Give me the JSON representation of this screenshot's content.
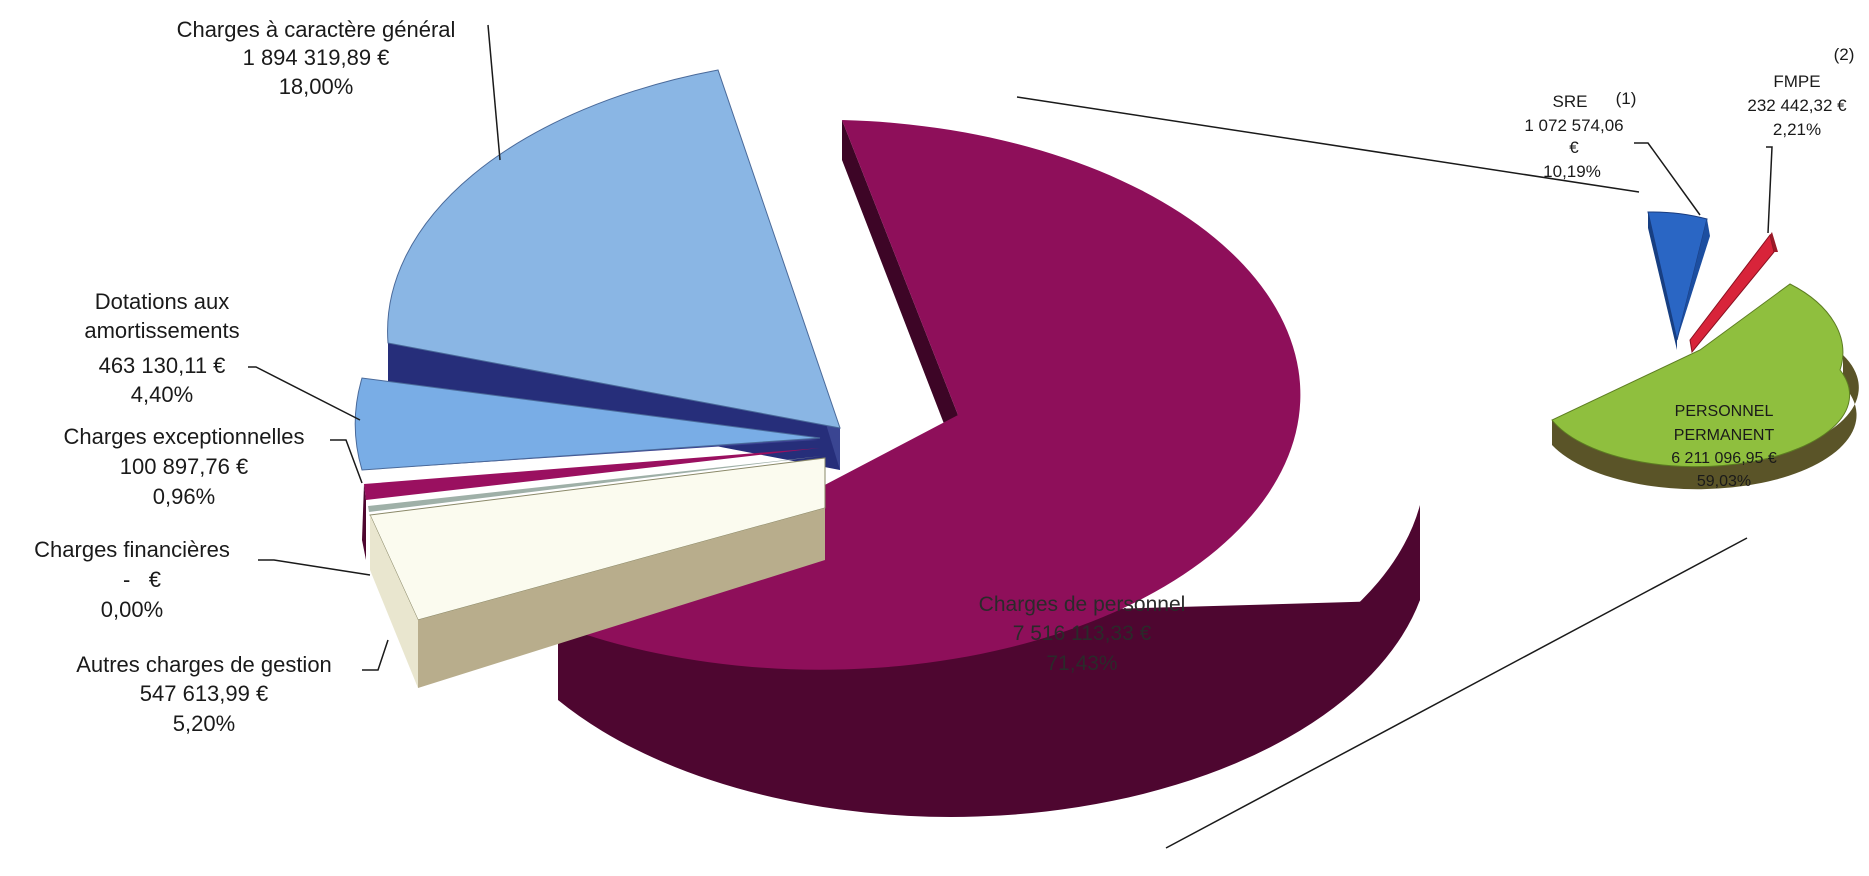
{
  "chart_data": [
    {
      "type": "pie",
      "title": "",
      "slices": [
        {
          "label": "Charges à caractère général",
          "amount": "1 894 319,89 €",
          "percent": "18,00%",
          "value": 1894319.89,
          "color": "#8ab6e4"
        },
        {
          "label": "Dotations aux amortissements",
          "amount": "463 130,11 €",
          "percent": "4,40%",
          "value": 463130.11,
          "color": "#6fa6e0"
        },
        {
          "label": "Charges exceptionnelles",
          "amount": "100 897,76 €",
          "percent": "0,96%",
          "value": 100897.76,
          "color": "#9a1060"
        },
        {
          "label": "Charges financières",
          "amount": "-   €",
          "percent": "0,00%",
          "value": 0,
          "color": "#9fb0a8"
        },
        {
          "label": "Autres charges de gestion",
          "amount": "547 613,99 €",
          "percent": "5,20%",
          "value": 547613.99,
          "color": "#fbfbef"
        },
        {
          "label": "Charges de personnel",
          "amount": "7 516 113,33 €",
          "percent": "71,43%",
          "value": 7516113.33,
          "color": "#8e0f5a"
        }
      ]
    },
    {
      "type": "pie",
      "title": "",
      "slices": [
        {
          "label": "SRE",
          "note": "(1)",
          "amount_line1": "1 072 574,06",
          "amount_line2": "€",
          "percent": "10,19%",
          "value": 1072574.06,
          "color": "#2a66c4"
        },
        {
          "label": "FMPE",
          "note": "(2)",
          "amount": "232 442,32 €",
          "percent": "2,21%",
          "value": 232442.32,
          "color": "#d8243a"
        },
        {
          "label_line1": "PERSONNEL",
          "label_line2": "PERMANENT",
          "amount": "6 211 096,95 €",
          "percent": "59,03%",
          "value": 6211096.95,
          "color": "#8fbf3e"
        }
      ]
    }
  ]
}
